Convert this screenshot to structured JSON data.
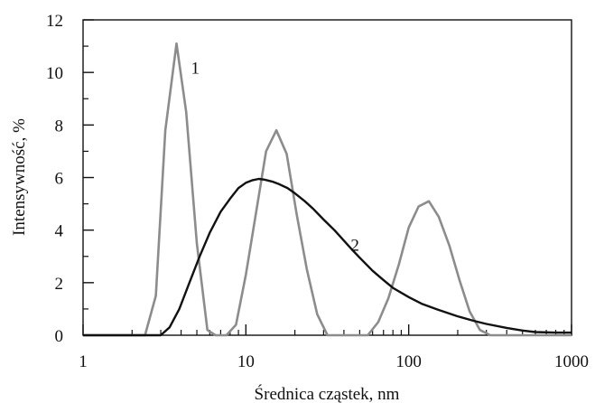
{
  "chart_data": {
    "type": "line",
    "title": "",
    "xlabel": "Średnica cząstek, nm",
    "ylabel": "Intensywność, %",
    "xscale": "log",
    "xlim": [
      1,
      1000
    ],
    "ylim": [
      0,
      12
    ],
    "xticks": [
      1,
      10,
      100,
      1000
    ],
    "xtick_labels": [
      "1",
      "10",
      "100",
      "1000"
    ],
    "yticks": [
      0,
      2,
      4,
      6,
      8,
      10,
      12
    ],
    "ytick_labels": [
      "0",
      "2",
      "4",
      "6",
      "8",
      "10",
      "12"
    ],
    "grid": false,
    "series": [
      {
        "label": "1",
        "color": "#8c8c8c",
        "x": [
          1,
          2.4,
          2.8,
          3.2,
          3.75,
          4.3,
          5.0,
          5.8,
          6.5,
          7.6,
          8.7,
          10.0,
          11.5,
          13.3,
          15.4,
          17.8,
          20.5,
          23.7,
          27.4,
          31.7,
          36.5,
          42.0,
          48.5,
          56.0,
          65.0,
          75.0,
          87.0,
          100.0,
          115.0,
          133.0,
          153.0,
          178.0,
          205.0,
          237.0,
          274.0,
          317.0,
          1000
        ],
        "y": [
          0,
          0,
          1.5,
          7.8,
          11.1,
          8.5,
          3.5,
          0.2,
          0,
          0,
          0.4,
          2.3,
          4.6,
          7.0,
          7.8,
          6.9,
          4.6,
          2.5,
          0.8,
          0,
          0,
          0,
          0,
          0,
          0.5,
          1.4,
          2.7,
          4.1,
          4.9,
          5.1,
          4.5,
          3.4,
          2.1,
          0.9,
          0.2,
          0,
          0
        ]
      },
      {
        "label": "2",
        "color": "#111111",
        "x": [
          1,
          3.0,
          3.4,
          3.9,
          4.5,
          5.2,
          6.0,
          7.0,
          8.0,
          9.0,
          10.0,
          11.0,
          12.0,
          13.0,
          14.5,
          16.0,
          18.0,
          20.0,
          23.0,
          26.0,
          30.0,
          35.0,
          40.0,
          45.0,
          50.0,
          60.0,
          70.0,
          80.0,
          100.0,
          120.0,
          150.0,
          200.0,
          250.0,
          300.0,
          400.0,
          500.0,
          600.0,
          800.0,
          1000
        ],
        "y": [
          0,
          0,
          0.3,
          1.0,
          2.0,
          3.0,
          3.9,
          4.7,
          5.2,
          5.6,
          5.8,
          5.9,
          5.95,
          5.92,
          5.85,
          5.75,
          5.6,
          5.4,
          5.1,
          4.8,
          4.4,
          4.0,
          3.6,
          3.25,
          2.95,
          2.45,
          2.1,
          1.8,
          1.45,
          1.2,
          0.98,
          0.72,
          0.55,
          0.43,
          0.28,
          0.18,
          0.12,
          0.1,
          0.1
        ]
      }
    ]
  }
}
